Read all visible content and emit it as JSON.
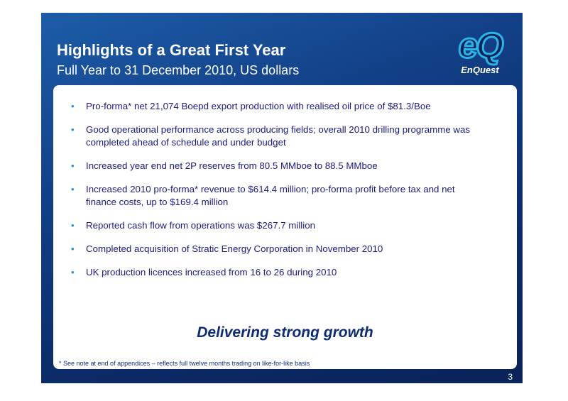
{
  "header": {
    "title": "Highlights of a Great First Year",
    "subtitle": "Full Year to 31 December 2010, US dollars"
  },
  "logo": {
    "mark": "eQ",
    "name": "EnQuest"
  },
  "bullets": [
    "Pro-forma* net 21,074 Boepd export production with realised oil price of $81.3/Boe",
    "Good operational performance across producing fields; overall 2010 drilling programme was completed ahead of schedule and under budget",
    "Increased year end net 2P reserves from 80.5 MMboe to 88.5 MMboe",
    "Increased 2010 pro-forma* revenue to $614.4 million; pro-forma profit before tax and net finance costs, up to $169.4 million",
    "Reported cash flow from operations was $267.7 million",
    "Completed acquisition of Stratic Energy Corporation in November 2010",
    "UK production licences increased from 16 to 26 during 2010"
  ],
  "tagline": "Delivering strong growth",
  "footnote": "* See note at end of appendices – reflects full twelve months trading on like-for-like basis",
  "page_number": "3"
}
